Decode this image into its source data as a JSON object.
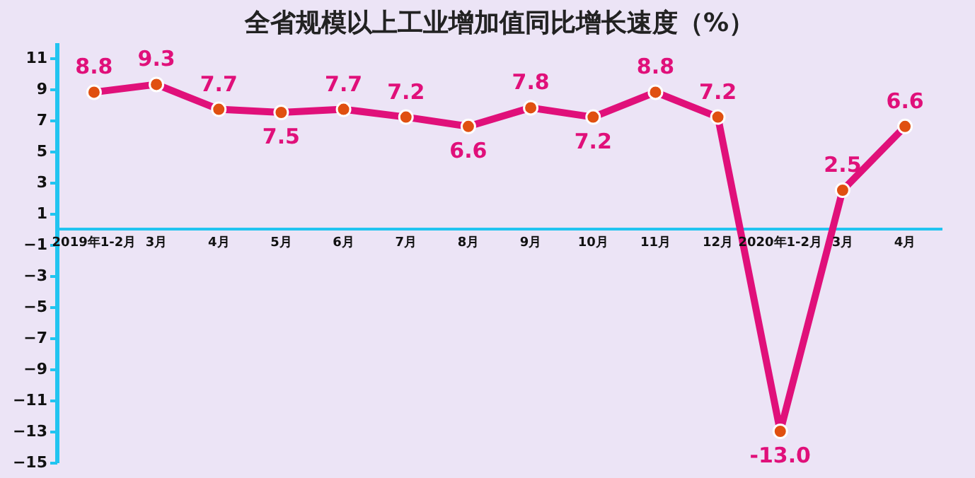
{
  "chart_data": {
    "type": "line",
    "title": "全省规模以上工业增加值同比增长速度（%）",
    "categories": [
      "2019年1-2月",
      "3月",
      "4月",
      "5月",
      "6月",
      "7月",
      "8月",
      "9月",
      "10月",
      "11月",
      "12月",
      "2020年1-2月",
      "3月",
      "4月"
    ],
    "series": [
      {
        "color": "#e0107a",
        "values": [
          8.8,
          9.3,
          7.7,
          7.5,
          7.7,
          7.2,
          6.6,
          7.8,
          7.2,
          8.8,
          7.2,
          -13.0,
          2.5,
          6.6
        ],
        "value_labels": [
          "8.8",
          "9.3",
          "7.7",
          "7.5",
          "7.7",
          "7.2",
          "6.6",
          "7.8",
          "7.2",
          "8.8",
          "7.2",
          "-13.0",
          "2.5",
          "6.6"
        ]
      }
    ],
    "ylim": [
      -15,
      12
    ],
    "yticks": [
      -15,
      -13,
      -11,
      -9,
      -7,
      -5,
      -3,
      -1,
      1,
      3,
      5,
      7,
      9,
      11
    ],
    "grid": false,
    "marker": "circle",
    "line_style": "solid"
  }
}
